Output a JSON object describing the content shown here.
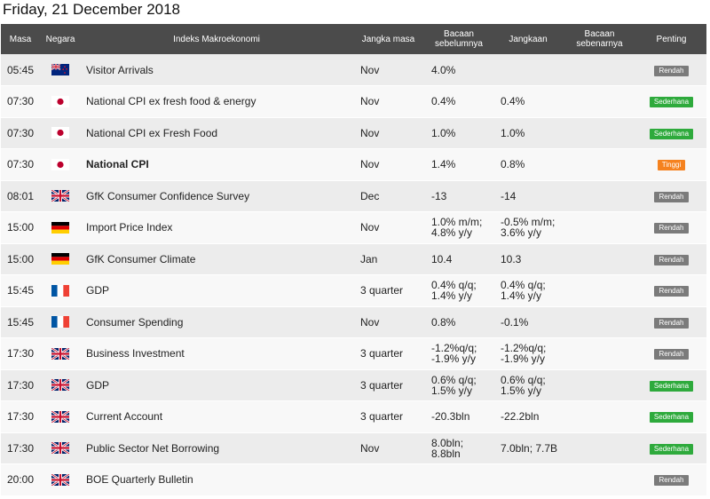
{
  "page": {
    "date_title": "Friday, 21 December 2018"
  },
  "columns": {
    "time": "Masa",
    "country": "Negara",
    "indicator": "Indeks Makroekonomi",
    "period": "Jangka masa",
    "previous": "Bacaan sebelumnya",
    "forecast": "Jangkaan",
    "actual": "Bacaan sebenarnya",
    "importance": "Penting"
  },
  "colors": {
    "header_bg": "#4b4b4b",
    "low": "#7b7b7b",
    "moderate": "#2eaa3c",
    "high": "#f5821f"
  },
  "events": [
    {
      "time": "05:45",
      "flag": "nz-flag",
      "indicator": "Visitor Arrivals",
      "period": "Nov",
      "previous": "4.0%",
      "forecast": "",
      "actual": "",
      "importance": "Rendah",
      "level": "low",
      "bold": false
    },
    {
      "time": "07:30",
      "flag": "jp-flag",
      "indicator": "National CPI ex fresh food & energy",
      "period": "Nov",
      "previous": "0.4%",
      "forecast": "0.4%",
      "actual": "",
      "importance": "Sederhana",
      "level": "mod",
      "bold": false
    },
    {
      "time": "07:30",
      "flag": "jp-flag",
      "indicator": "National CPI ex Fresh Food",
      "period": "Nov",
      "previous": "1.0%",
      "forecast": "1.0%",
      "actual": "",
      "importance": "Sederhana",
      "level": "mod",
      "bold": false
    },
    {
      "time": "07:30",
      "flag": "jp-flag",
      "indicator": "National CPI",
      "period": "Nov",
      "previous": "1.4%",
      "forecast": "0.8%",
      "actual": "",
      "importance": "Tinggi",
      "level": "high",
      "bold": true
    },
    {
      "time": "08:01",
      "flag": "uk-flag",
      "indicator": "GfK Consumer Confidence Survey",
      "period": "Dec",
      "previous": "-13",
      "forecast": "-14",
      "actual": "",
      "importance": "Rendah",
      "level": "low",
      "bold": false
    },
    {
      "time": "15:00",
      "flag": "de-flag",
      "indicator": "Import Price Index",
      "period": "Nov",
      "previous": "1.0% m/m;\n4.8% y/y",
      "forecast": "-0.5% m/m;\n3.6% y/y",
      "actual": "",
      "importance": "Rendah",
      "level": "low",
      "bold": false
    },
    {
      "time": "15:00",
      "flag": "de-flag",
      "indicator": "GfK Consumer Climate",
      "period": "Jan",
      "previous": "10.4",
      "forecast": "10.3",
      "actual": "",
      "importance": "Rendah",
      "level": "low",
      "bold": false
    },
    {
      "time": "15:45",
      "flag": "fr-flag",
      "indicator": "GDP",
      "period": "3 quarter",
      "previous": "0.4% q/q;\n1.4% y/y",
      "forecast": "0.4% q/q;\n1.4% y/y",
      "actual": "",
      "importance": "Rendah",
      "level": "low",
      "bold": false
    },
    {
      "time": "15:45",
      "flag": "fr-flag",
      "indicator": "Consumer Spending",
      "period": "Nov",
      "previous": "0.8%",
      "forecast": "-0.1%",
      "actual": "",
      "importance": "Rendah",
      "level": "low",
      "bold": false
    },
    {
      "time": "17:30",
      "flag": "uk-flag",
      "indicator": "Business Investment",
      "period": "3 quarter",
      "previous": "-1.2%q/q;\n-1.9% y/y",
      "forecast": "-1.2%q/q;\n-1.9% y/y",
      "actual": "",
      "importance": "Rendah",
      "level": "low",
      "bold": false
    },
    {
      "time": "17:30",
      "flag": "uk-flag",
      "indicator": "GDP",
      "period": "3 quarter",
      "previous": "0.6% q/q;\n1.5% y/y",
      "forecast": "0.6% q/q;\n1.5% y/y",
      "actual": "",
      "importance": "Sederhana",
      "level": "mod",
      "bold": false
    },
    {
      "time": "17:30",
      "flag": "uk-flag",
      "indicator": "Current Account",
      "period": "3 quarter",
      "previous": "-20.3bln",
      "forecast": "-22.2bln",
      "actual": "",
      "importance": "Sederhana",
      "level": "mod",
      "bold": false
    },
    {
      "time": "17:30",
      "flag": "uk-flag",
      "indicator": "Public Sector Net Borrowing",
      "period": "Nov",
      "previous": "8.0bln;\n8.8bln",
      "forecast": "7.0bln; 7.7B",
      "actual": "",
      "importance": "Sederhana",
      "level": "mod",
      "bold": false
    },
    {
      "time": "20:00",
      "flag": "uk-flag",
      "indicator": "BOE Quarterly Bulletin",
      "period": "",
      "previous": "",
      "forecast": "",
      "actual": "",
      "importance": "Rendah",
      "level": "low",
      "bold": false
    }
  ]
}
